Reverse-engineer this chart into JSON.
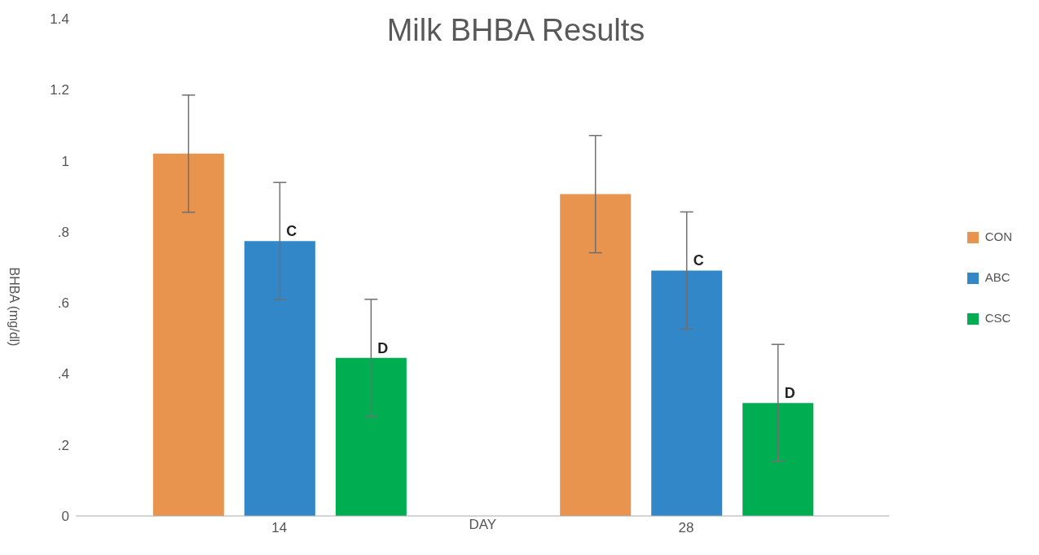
{
  "chart_data": {
    "type": "bar",
    "title": "Milk BHBA Results",
    "xlabel": "DAY",
    "ylabel": "BHBA (mg/dl)",
    "categories": [
      "14",
      "28"
    ],
    "series": [
      {
        "name": "CON",
        "color": "#e8944f",
        "values": [
          1.02,
          0.906
        ],
        "errors": [
          0.165,
          0.165
        ]
      },
      {
        "name": "ABC",
        "color": "#3287c8",
        "values": [
          0.774,
          0.691
        ],
        "errors": [
          0.165,
          0.165
        ],
        "value_labels": [
          "C",
          "C"
        ]
      },
      {
        "name": "CSC",
        "color": "#00ad50",
        "values": [
          0.445,
          0.318
        ],
        "errors": [
          0.165,
          0.165
        ],
        "value_labels": [
          "D",
          "D"
        ]
      }
    ],
    "ylim": [
      0,
      1.4
    ],
    "yticks": [
      0,
      {
        "value": 0.2,
        "label": ".2"
      },
      {
        "value": 0.4,
        "label": ".4"
      },
      {
        "value": 0.6,
        "label": ".6"
      },
      {
        "value": 0.8,
        "label": ".8"
      },
      1,
      1.2,
      1.4
    ],
    "grid": false,
    "legend": "right"
  }
}
